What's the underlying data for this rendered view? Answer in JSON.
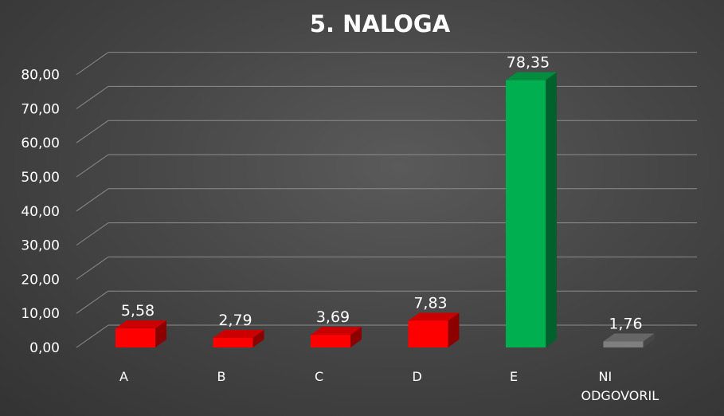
{
  "chart_data": {
    "type": "bar",
    "title": "5. NALOGA",
    "categories": [
      "A",
      "B",
      "C",
      "D",
      "E",
      "NI ODGOVORIL"
    ],
    "values": [
      5.58,
      2.79,
      3.69,
      7.83,
      78.35,
      1.76
    ],
    "value_labels": [
      "5,58",
      "2,79",
      "3,69",
      "7,83",
      "78,35",
      "1,76"
    ],
    "y_ticks": [
      "0,00",
      "10,00",
      "20,00",
      "30,00",
      "40,00",
      "50,00",
      "60,00",
      "70,00",
      "80,00"
    ],
    "ylim": [
      0,
      80
    ],
    "grid": true,
    "bar_colors": [
      "#ff0000",
      "#ff0000",
      "#ff0000",
      "#ff0000",
      "#00b050",
      "#7f7f7f"
    ],
    "xlabel": "",
    "ylabel": ""
  }
}
